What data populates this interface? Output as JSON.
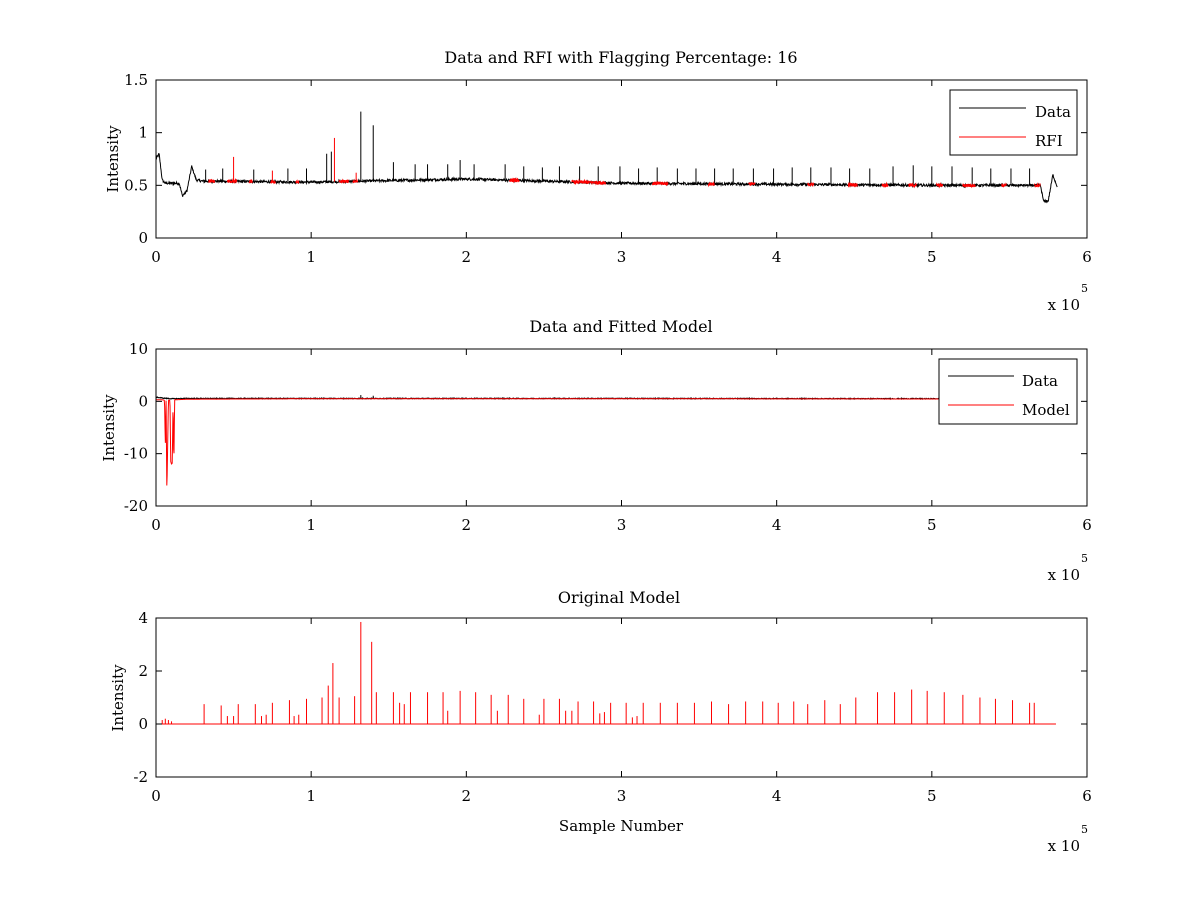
{
  "figure": {
    "background": "#ffffff"
  },
  "colors": {
    "data": "#000000",
    "rfi": "#ff0000",
    "model": "#ff0000",
    "axes": "#000000"
  },
  "chart_data": [
    {
      "type": "line",
      "title": "Data and RFI with Flagging Percentage: 16",
      "xlabel": "",
      "ylabel": "Intensity",
      "xlim": [
        0,
        600000
      ],
      "ylim": [
        0,
        1.5
      ],
      "xticks": [
        0,
        1,
        2,
        3,
        4,
        5,
        6
      ],
      "yticks": [
        0,
        0.5,
        1,
        1.5
      ],
      "xtick_labels": [
        "0",
        "1",
        "2",
        "3",
        "4",
        "5",
        "6"
      ],
      "ytick_labels": [
        "0",
        "0.5",
        "1",
        "1.5"
      ],
      "x_multiplier": "x 10",
      "x_exponent": "5",
      "legend": {
        "position": "top-right",
        "entries": [
          "Data",
          "RFI"
        ]
      },
      "series": [
        {
          "name": "Data",
          "color": "#000000",
          "x": [
            0,
            2000,
            4000,
            6000,
            15000,
            17000,
            20000,
            23000,
            26000,
            30000,
            100000,
            200000,
            300000,
            400000,
            500000,
            570000,
            572000,
            575000,
            578000,
            581000
          ],
          "y": [
            0.75,
            0.8,
            0.55,
            0.52,
            0.52,
            0.4,
            0.45,
            0.68,
            0.55,
            0.54,
            0.53,
            0.56,
            0.52,
            0.51,
            0.5,
            0.5,
            0.35,
            0.35,
            0.6,
            0.48
          ],
          "noise": 0.012,
          "spikes": [
            {
              "x": 32000,
              "y": 0.65
            },
            {
              "x": 43000,
              "y": 0.66
            },
            {
              "x": 63000,
              "y": 0.65
            },
            {
              "x": 85000,
              "y": 0.66
            },
            {
              "x": 97000,
              "y": 0.66
            },
            {
              "x": 110000,
              "y": 0.8
            },
            {
              "x": 113000,
              "y": 0.82
            },
            {
              "x": 132000,
              "y": 1.2
            },
            {
              "x": 140000,
              "y": 1.07
            },
            {
              "x": 153000,
              "y": 0.72
            },
            {
              "x": 167000,
              "y": 0.7
            },
            {
              "x": 175000,
              "y": 0.7
            },
            {
              "x": 188000,
              "y": 0.7
            },
            {
              "x": 196000,
              "y": 0.74
            },
            {
              "x": 205000,
              "y": 0.7
            },
            {
              "x": 225000,
              "y": 0.7
            },
            {
              "x": 237000,
              "y": 0.68
            },
            {
              "x": 249000,
              "y": 0.67
            },
            {
              "x": 260000,
              "y": 0.68
            },
            {
              "x": 273000,
              "y": 0.68
            },
            {
              "x": 285000,
              "y": 0.68
            },
            {
              "x": 299000,
              "y": 0.68
            },
            {
              "x": 311000,
              "y": 0.66
            },
            {
              "x": 323000,
              "y": 0.67
            },
            {
              "x": 336000,
              "y": 0.66
            },
            {
              "x": 348000,
              "y": 0.66
            },
            {
              "x": 360000,
              "y": 0.66
            },
            {
              "x": 372000,
              "y": 0.66
            },
            {
              "x": 385000,
              "y": 0.66
            },
            {
              "x": 398000,
              "y": 0.66
            },
            {
              "x": 410000,
              "y": 0.67
            },
            {
              "x": 422000,
              "y": 0.67
            },
            {
              "x": 435000,
              "y": 0.67
            },
            {
              "x": 447000,
              "y": 0.66
            },
            {
              "x": 460000,
              "y": 0.66
            },
            {
              "x": 475000,
              "y": 0.68
            },
            {
              "x": 488000,
              "y": 0.69
            },
            {
              "x": 500000,
              "y": 0.68
            },
            {
              "x": 513000,
              "y": 0.68
            },
            {
              "x": 526000,
              "y": 0.67
            },
            {
              "x": 538000,
              "y": 0.66
            },
            {
              "x": 551000,
              "y": 0.66
            },
            {
              "x": 563000,
              "y": 0.66
            }
          ]
        },
        {
          "name": "RFI",
          "color": "#ff0000",
          "x": [],
          "y": [],
          "noise": 0.012,
          "segments": [
            [
              34000,
              38000
            ],
            [
              46000,
              52000
            ],
            [
              60000,
              62000
            ],
            [
              74000,
              77000
            ],
            [
              90000,
              92000
            ],
            [
              118000,
              124000
            ],
            [
              127000,
              130000
            ],
            [
              228000,
              234000
            ],
            [
              268000,
              290000
            ],
            [
              320000,
              330000
            ],
            [
              356000,
              360000
            ],
            [
              382000,
              386000
            ],
            [
              420000,
              424000
            ],
            [
              446000,
              452000
            ],
            [
              468000,
              472000
            ],
            [
              485000,
              490000
            ],
            [
              503000,
              507000
            ],
            [
              520000,
              528000
            ],
            [
              545000,
              548000
            ],
            [
              566000,
              570000
            ]
          ],
          "spikes": [
            {
              "x": 50000,
              "y": 0.77
            },
            {
              "x": 75000,
              "y": 0.64
            },
            {
              "x": 115000,
              "y": 0.95
            },
            {
              "x": 129000,
              "y": 0.62
            }
          ]
        }
      ]
    },
    {
      "type": "line",
      "title": "Data and Fitted Model",
      "xlabel": "",
      "ylabel": "Intensity",
      "xlim": [
        0,
        600000
      ],
      "ylim": [
        -20,
        10
      ],
      "xticks": [
        0,
        1,
        2,
        3,
        4,
        5,
        6
      ],
      "yticks": [
        -20,
        -10,
        0,
        10
      ],
      "xtick_labels": [
        "0",
        "1",
        "2",
        "3",
        "4",
        "5",
        "6"
      ],
      "ytick_labels": [
        "-20",
        "-10",
        "0",
        "10"
      ],
      "x_multiplier": "x 10",
      "x_exponent": "5",
      "legend": {
        "position": "top-right",
        "entries": [
          "Data",
          "Model"
        ]
      },
      "series": [
        {
          "name": "Data",
          "color": "#000000",
          "x": [
            0,
            5000,
            10000,
            20000,
            100000,
            300000,
            500000,
            580000
          ],
          "y": [
            0.8,
            0.6,
            0.5,
            0.55,
            0.55,
            0.55,
            0.5,
            0.5
          ],
          "noise": 0.08,
          "spikes": [
            {
              "x": 132000,
              "y": 1.2
            },
            {
              "x": 140000,
              "y": 1.07
            }
          ]
        },
        {
          "name": "Model",
          "color": "#ff0000",
          "x": [
            0,
            4000,
            5500,
            6000,
            6500,
            7000,
            8000,
            9000,
            9500,
            10000,
            10500,
            11000,
            11500,
            12000,
            13000,
            20000,
            100000,
            300000,
            500000,
            580000
          ],
          "y": [
            0.3,
            0.3,
            0.2,
            -8.5,
            0.2,
            -17.5,
            0.2,
            0.2,
            -11.5,
            -12,
            -11.8,
            0.2,
            -12.5,
            0.3,
            0.3,
            0.4,
            0.5,
            0.5,
            0.45,
            0.45
          ],
          "noise": 0.0,
          "spikes": []
        }
      ]
    },
    {
      "type": "line",
      "title": "Original Model",
      "xlabel": "Sample Number",
      "ylabel": "Intensity",
      "xlim": [
        0,
        600000
      ],
      "ylim": [
        -2,
        4
      ],
      "xticks": [
        0,
        1,
        2,
        3,
        4,
        5,
        6
      ],
      "yticks": [
        -2,
        0,
        2,
        4
      ],
      "xtick_labels": [
        "0",
        "1",
        "2",
        "3",
        "4",
        "5",
        "6"
      ],
      "ytick_labels": [
        "-2",
        "0",
        "2",
        "4"
      ],
      "x_multiplier": "x 10",
      "x_exponent": "5",
      "legend": null,
      "series": [
        {
          "name": "Model",
          "color": "#ff0000",
          "x": [
            0,
            580000
          ],
          "y": [
            0,
            0
          ],
          "noise": 0.0,
          "spikes": [
            {
              "x": 4000,
              "y": 0.15
            },
            {
              "x": 6000,
              "y": 0.2
            },
            {
              "x": 8000,
              "y": 0.15
            },
            {
              "x": 10000,
              "y": 0.1
            },
            {
              "x": 31000,
              "y": 0.75
            },
            {
              "x": 42000,
              "y": 0.7
            },
            {
              "x": 46000,
              "y": 0.3
            },
            {
              "x": 50000,
              "y": 0.3
            },
            {
              "x": 53000,
              "y": 0.75
            },
            {
              "x": 64000,
              "y": 0.75
            },
            {
              "x": 68000,
              "y": 0.3
            },
            {
              "x": 71000,
              "y": 0.35
            },
            {
              "x": 75000,
              "y": 0.8
            },
            {
              "x": 86000,
              "y": 0.9
            },
            {
              "x": 89000,
              "y": 0.3
            },
            {
              "x": 92000,
              "y": 0.35
            },
            {
              "x": 97000,
              "y": 0.95
            },
            {
              "x": 107000,
              "y": 1.0
            },
            {
              "x": 111000,
              "y": 1.45
            },
            {
              "x": 114000,
              "y": 2.3
            },
            {
              "x": 118000,
              "y": 1.0
            },
            {
              "x": 128000,
              "y": 1.05
            },
            {
              "x": 132000,
              "y": 3.85
            },
            {
              "x": 139000,
              "y": 3.1
            },
            {
              "x": 142000,
              "y": 1.2
            },
            {
              "x": 153000,
              "y": 1.2
            },
            {
              "x": 157000,
              "y": 0.8
            },
            {
              "x": 160000,
              "y": 0.75
            },
            {
              "x": 164000,
              "y": 1.2
            },
            {
              "x": 175000,
              "y": 1.2
            },
            {
              "x": 185000,
              "y": 1.2
            },
            {
              "x": 188000,
              "y": 0.5
            },
            {
              "x": 196000,
              "y": 1.25
            },
            {
              "x": 206000,
              "y": 1.2
            },
            {
              "x": 216000,
              "y": 1.1
            },
            {
              "x": 220000,
              "y": 0.5
            },
            {
              "x": 227000,
              "y": 1.1
            },
            {
              "x": 237000,
              "y": 0.95
            },
            {
              "x": 247000,
              "y": 0.35
            },
            {
              "x": 250000,
              "y": 0.95
            },
            {
              "x": 260000,
              "y": 0.95
            },
            {
              "x": 264000,
              "y": 0.5
            },
            {
              "x": 268000,
              "y": 0.5
            },
            {
              "x": 272000,
              "y": 0.85
            },
            {
              "x": 282000,
              "y": 0.85
            },
            {
              "x": 286000,
              "y": 0.4
            },
            {
              "x": 289000,
              "y": 0.45
            },
            {
              "x": 293000,
              "y": 0.8
            },
            {
              "x": 303000,
              "y": 0.8
            },
            {
              "x": 307000,
              "y": 0.25
            },
            {
              "x": 310000,
              "y": 0.3
            },
            {
              "x": 314000,
              "y": 0.8
            },
            {
              "x": 325000,
              "y": 0.8
            },
            {
              "x": 336000,
              "y": 0.8
            },
            {
              "x": 347000,
              "y": 0.8
            },
            {
              "x": 358000,
              "y": 0.85
            },
            {
              "x": 369000,
              "y": 0.75
            },
            {
              "x": 380000,
              "y": 0.85
            },
            {
              "x": 391000,
              "y": 0.85
            },
            {
              "x": 401000,
              "y": 0.8
            },
            {
              "x": 411000,
              "y": 0.85
            },
            {
              "x": 420000,
              "y": 0.75
            },
            {
              "x": 431000,
              "y": 0.9
            },
            {
              "x": 441000,
              "y": 0.75
            },
            {
              "x": 451000,
              "y": 1.0
            },
            {
              "x": 465000,
              "y": 1.2
            },
            {
              "x": 476000,
              "y": 1.2
            },
            {
              "x": 487000,
              "y": 1.3
            },
            {
              "x": 497000,
              "y": 1.25
            },
            {
              "x": 508000,
              "y": 1.2
            },
            {
              "x": 520000,
              "y": 1.1
            },
            {
              "x": 531000,
              "y": 1.0
            },
            {
              "x": 541000,
              "y": 0.95
            },
            {
              "x": 552000,
              "y": 0.9
            },
            {
              "x": 563000,
              "y": 0.8
            },
            {
              "x": 566000,
              "y": 0.8
            }
          ]
        }
      ]
    }
  ]
}
